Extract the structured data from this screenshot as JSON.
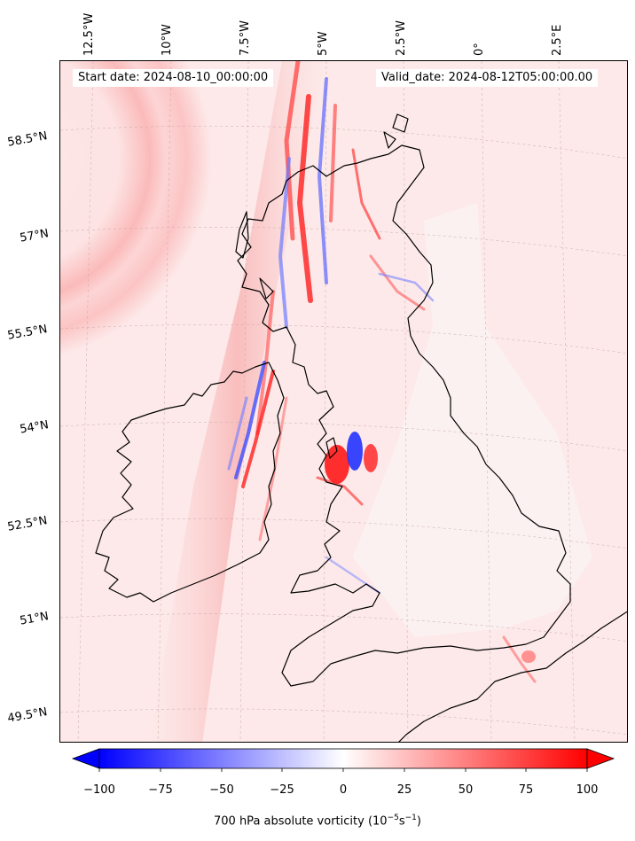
{
  "map": {
    "start_date": "Start date: 2024-08-10_00:00:00",
    "valid_date": "Valid_date: 2024-08-12T05:00:00.00",
    "lon_ticks": [
      "12.5°W",
      "10°W",
      "7.5°W",
      "5°W",
      "2.5°W",
      "0°",
      "2.5°E"
    ],
    "lat_ticks": [
      "58.5°N",
      "57°N",
      "55.5°N",
      "54°N",
      "52.5°N",
      "51°N",
      "49.5°N"
    ],
    "land_outline_color": "#000000",
    "field_color_positive": "#ff0000",
    "field_color_negative": "#0000ff"
  },
  "colorbar": {
    "min": -100,
    "max": 100,
    "ticks": [
      "−100",
      "−75",
      "−50",
      "−25",
      "0",
      "25",
      "50",
      "75",
      "100"
    ],
    "label": "700 hPa absolute vorticity (10",
    "label_exp": "−5",
    "label_mid": "s",
    "label_exp2": "−1",
    "label_end": ")",
    "extend": "both"
  }
}
